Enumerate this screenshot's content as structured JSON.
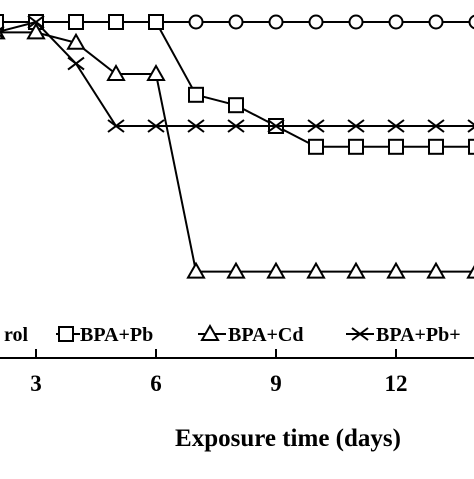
{
  "chart_data": {
    "type": "line",
    "title": "",
    "xlabel": "Exposure time (days)",
    "ylabel": "",
    "xlim": [
      2.1,
      13.95
    ],
    "ylim": [
      0,
      100
    ],
    "x_ticks": [
      3,
      6,
      9,
      12
    ],
    "x_tick_labels": [
      "3",
      "6",
      "9",
      "12"
    ],
    "grid": false,
    "legend_position": "bottom",
    "series": [
      {
        "name": "Control",
        "legend_text": "rol",
        "marker": "circle",
        "x": [
          2,
          3,
          4,
          5,
          6,
          7,
          8,
          9,
          10,
          11,
          12,
          13,
          14
        ],
        "y": [
          100,
          100,
          100,
          100,
          100,
          100,
          100,
          100,
          100,
          100,
          100,
          100,
          100
        ]
      },
      {
        "name": "BPA+Pb",
        "legend_text": "BPA+Pb",
        "marker": "square",
        "x": [
          2,
          3,
          4,
          5,
          6,
          7,
          8,
          9,
          10,
          11,
          12,
          13,
          14
        ],
        "y": [
          100,
          100,
          100,
          100,
          100,
          72,
          68,
          60,
          52,
          52,
          52,
          52,
          52
        ]
      },
      {
        "name": "BPA+Cd",
        "legend_text": "BPA+Cd",
        "marker": "triangle",
        "x": [
          2,
          3,
          4,
          5,
          6,
          7,
          8,
          9,
          10,
          11,
          12,
          13,
          14
        ],
        "y": [
          96,
          96,
          92,
          80,
          80,
          4,
          4,
          4,
          4,
          4,
          4,
          4,
          4
        ]
      },
      {
        "name": "BPA+Pb+",
        "legend_text": "BPA+Pb+",
        "marker": "cross",
        "x": [
          2,
          3,
          4,
          5,
          6,
          7,
          8,
          9,
          10,
          11,
          12,
          13,
          14
        ],
        "y": [
          96,
          100,
          84,
          60,
          60,
          60,
          60,
          60,
          60,
          60,
          60,
          60,
          60
        ]
      }
    ]
  }
}
